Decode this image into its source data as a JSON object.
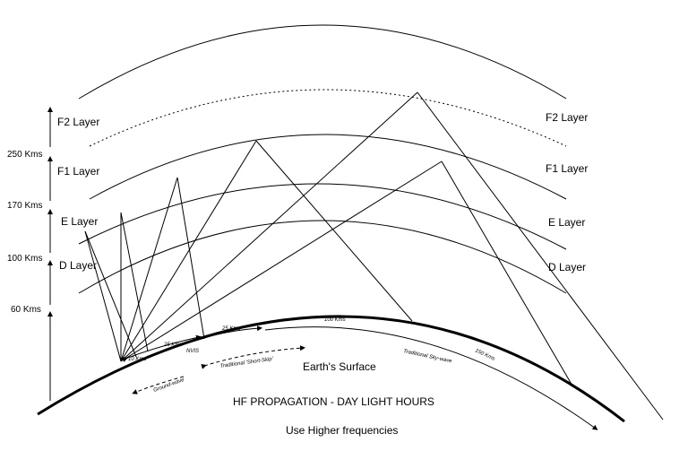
{
  "title": "HF PROPAGATION - DAY LIGHT HOURS",
  "subtitle": "Use Higher frequencies",
  "surface_label": "Earth's Surface",
  "left_layers": [
    "F2 Layer",
    "F1 Layer",
    "E Layer",
    "D Layer"
  ],
  "right_layers": [
    "F2 Layer",
    "F1 Layer",
    "E Layer",
    "D Layer"
  ],
  "heights": [
    "250 Kms",
    "170 Kms",
    "100 Kms",
    "60 Kms"
  ],
  "distances": [
    "10 Kms",
    "25 Kms",
    "NVIS",
    "25 Kms",
    "100 Kms",
    "Traditional Sky-wave",
    "150 Kms",
    "Ground-wave",
    "Traditional 'Short-Skip'"
  ]
}
